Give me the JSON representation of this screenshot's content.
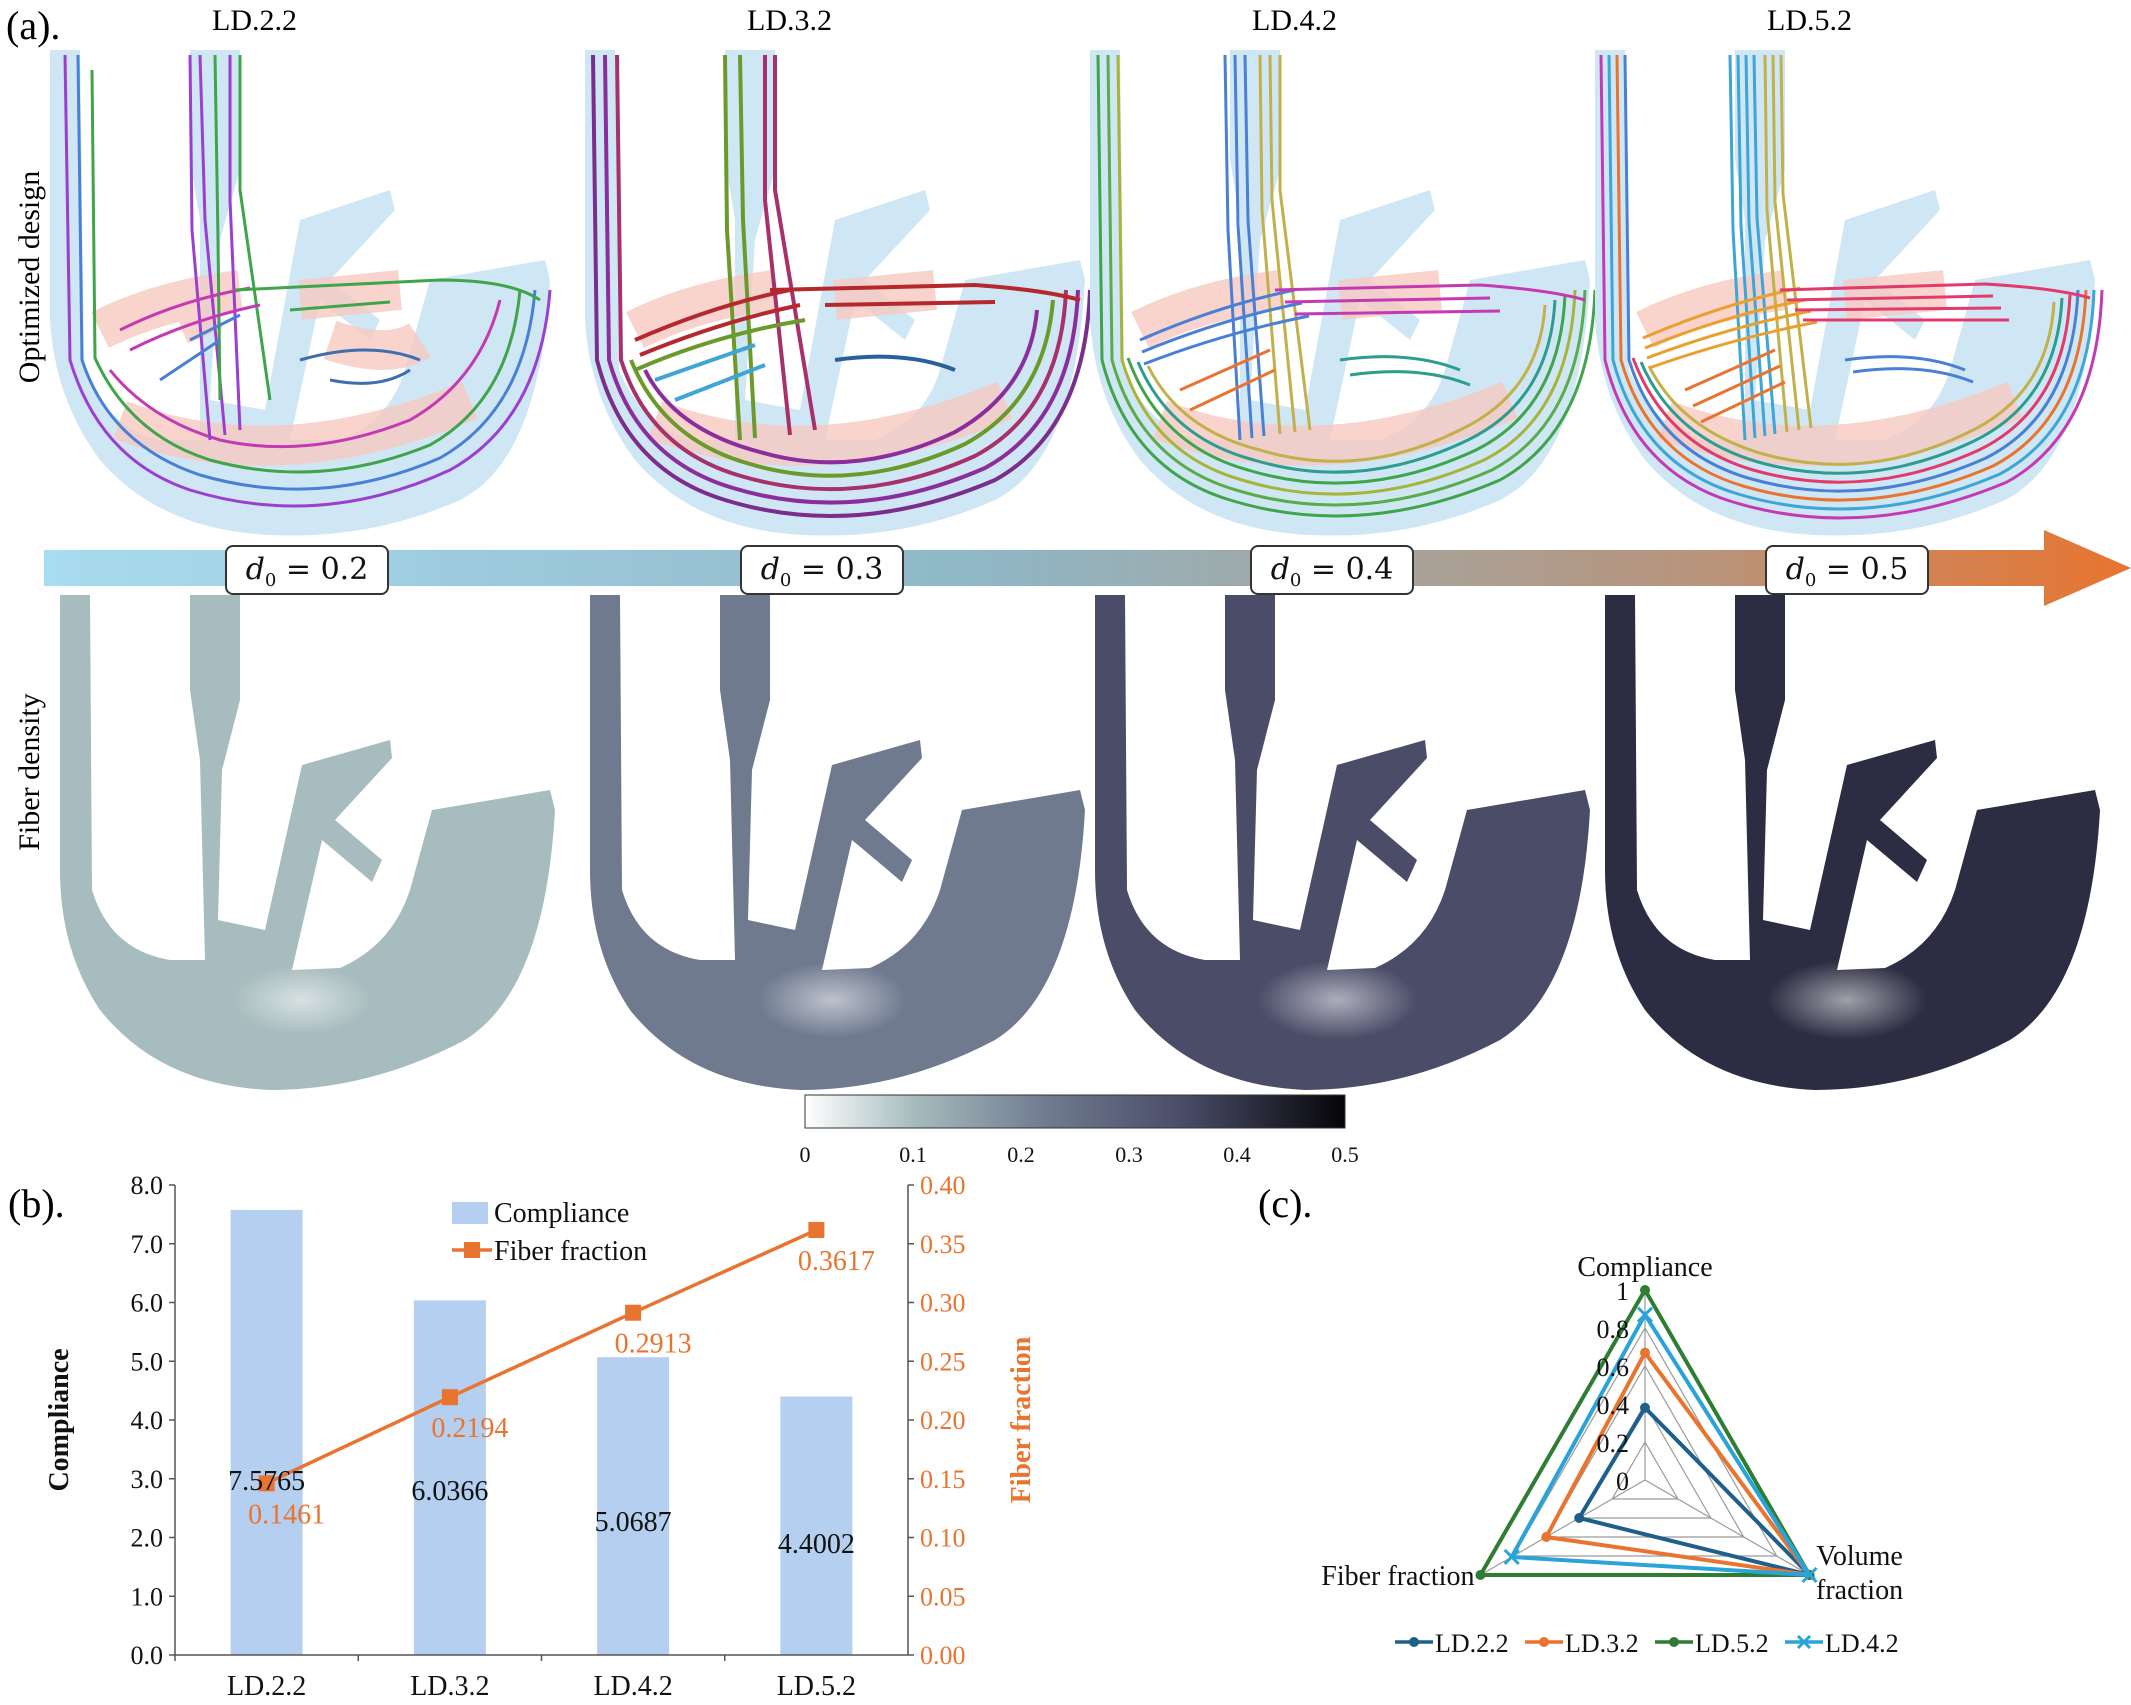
{
  "panel_a": {
    "label": "(a).",
    "row_labels": [
      "Optimized design",
      "Fiber density"
    ],
    "designs": [
      {
        "name": "LD.2.2",
        "d0_label": "= 0.2",
        "d0": 0.2,
        "density_color": "#a7bcbe"
      },
      {
        "name": "LD.3.2",
        "d0_label": "= 0.3",
        "d0": 0.3,
        "density_color": "#6f7a8f"
      },
      {
        "name": "LD.4.2",
        "d0_label": "= 0.4",
        "d0": 0.4,
        "density_color": "#4a4c68"
      },
      {
        "name": "LD.5.2",
        "d0_label": "= 0.5",
        "d0": 0.5,
        "density_color": "#2c2c42"
      }
    ],
    "d0_symbol": "d",
    "d0_subscript": "0",
    "colorbar_ticks": [
      "0",
      "0.1",
      "0.2",
      "0.3",
      "0.4",
      "0.5"
    ],
    "arrow_colors": [
      "#a9dcf0",
      "#8fb7c6",
      "#b9937a",
      "#e8742f"
    ]
  },
  "panel_b_label": "(b).",
  "panel_c_label": "(c).",
  "chart_data": [
    {
      "type": "bar",
      "categories": [
        "LD.2.2",
        "LD.3.2",
        "LD.4.2",
        "LD.5.2"
      ],
      "series": [
        {
          "name": "Compliance",
          "type": "bar",
          "axis": "left",
          "values": [
            7.5765,
            6.0366,
            5.0687,
            4.4002
          ],
          "labels": [
            "7.5765",
            "6.0366",
            "5.0687",
            "4.4002"
          ],
          "color": "#b4cff0"
        },
        {
          "name": "Fiber fraction",
          "type": "line",
          "axis": "right",
          "values": [
            0.1461,
            0.2194,
            0.2913,
            0.3617
          ],
          "labels": [
            "0.1461",
            "0.2194",
            "0.2913",
            "0.3617"
          ],
          "color": "#e8742f"
        }
      ],
      "ylabel": "Compliance",
      "y2label": "Fiber fraction",
      "ylim": [
        0,
        8
      ],
      "y2lim": [
        0,
        0.4
      ],
      "yticks": [
        "0.0",
        "1.0",
        "2.0",
        "3.0",
        "4.0",
        "5.0",
        "6.0",
        "7.0",
        "8.0"
      ],
      "y2ticks": [
        "0.00",
        "0.05",
        "0.10",
        "0.15",
        "0.20",
        "0.25",
        "0.30",
        "0.35",
        "0.40"
      ],
      "legend": "top-center"
    },
    {
      "type": "radar",
      "axes": [
        "Compliance",
        "Volume fraction",
        "Fiber fraction"
      ],
      "axis_labels": {
        "top": "Compliance",
        "right_line1": "Volume",
        "right_line2": "fraction",
        "left": "Fiber fraction"
      },
      "rticks": [
        "0",
        "0.2",
        "0.4",
        "0.6",
        "0.8",
        "1"
      ],
      "rlim": [
        0,
        1
      ],
      "series": [
        {
          "name": "LD.2.2",
          "values": [
            0.38,
            1.0,
            0.4
          ],
          "color": "#1f5f8b",
          "marker": "circle"
        },
        {
          "name": "LD.3.2",
          "values": [
            0.67,
            1.0,
            0.6
          ],
          "color": "#e8742f",
          "marker": "circle"
        },
        {
          "name": "LD.5.2",
          "values": [
            1.0,
            1.0,
            1.0
          ],
          "color": "#2e7d32",
          "marker": "circle"
        },
        {
          "name": "LD.4.2",
          "values": [
            0.87,
            1.0,
            0.81
          ],
          "color": "#29a3d8",
          "marker": "x"
        }
      ],
      "legend": "bottom"
    }
  ]
}
